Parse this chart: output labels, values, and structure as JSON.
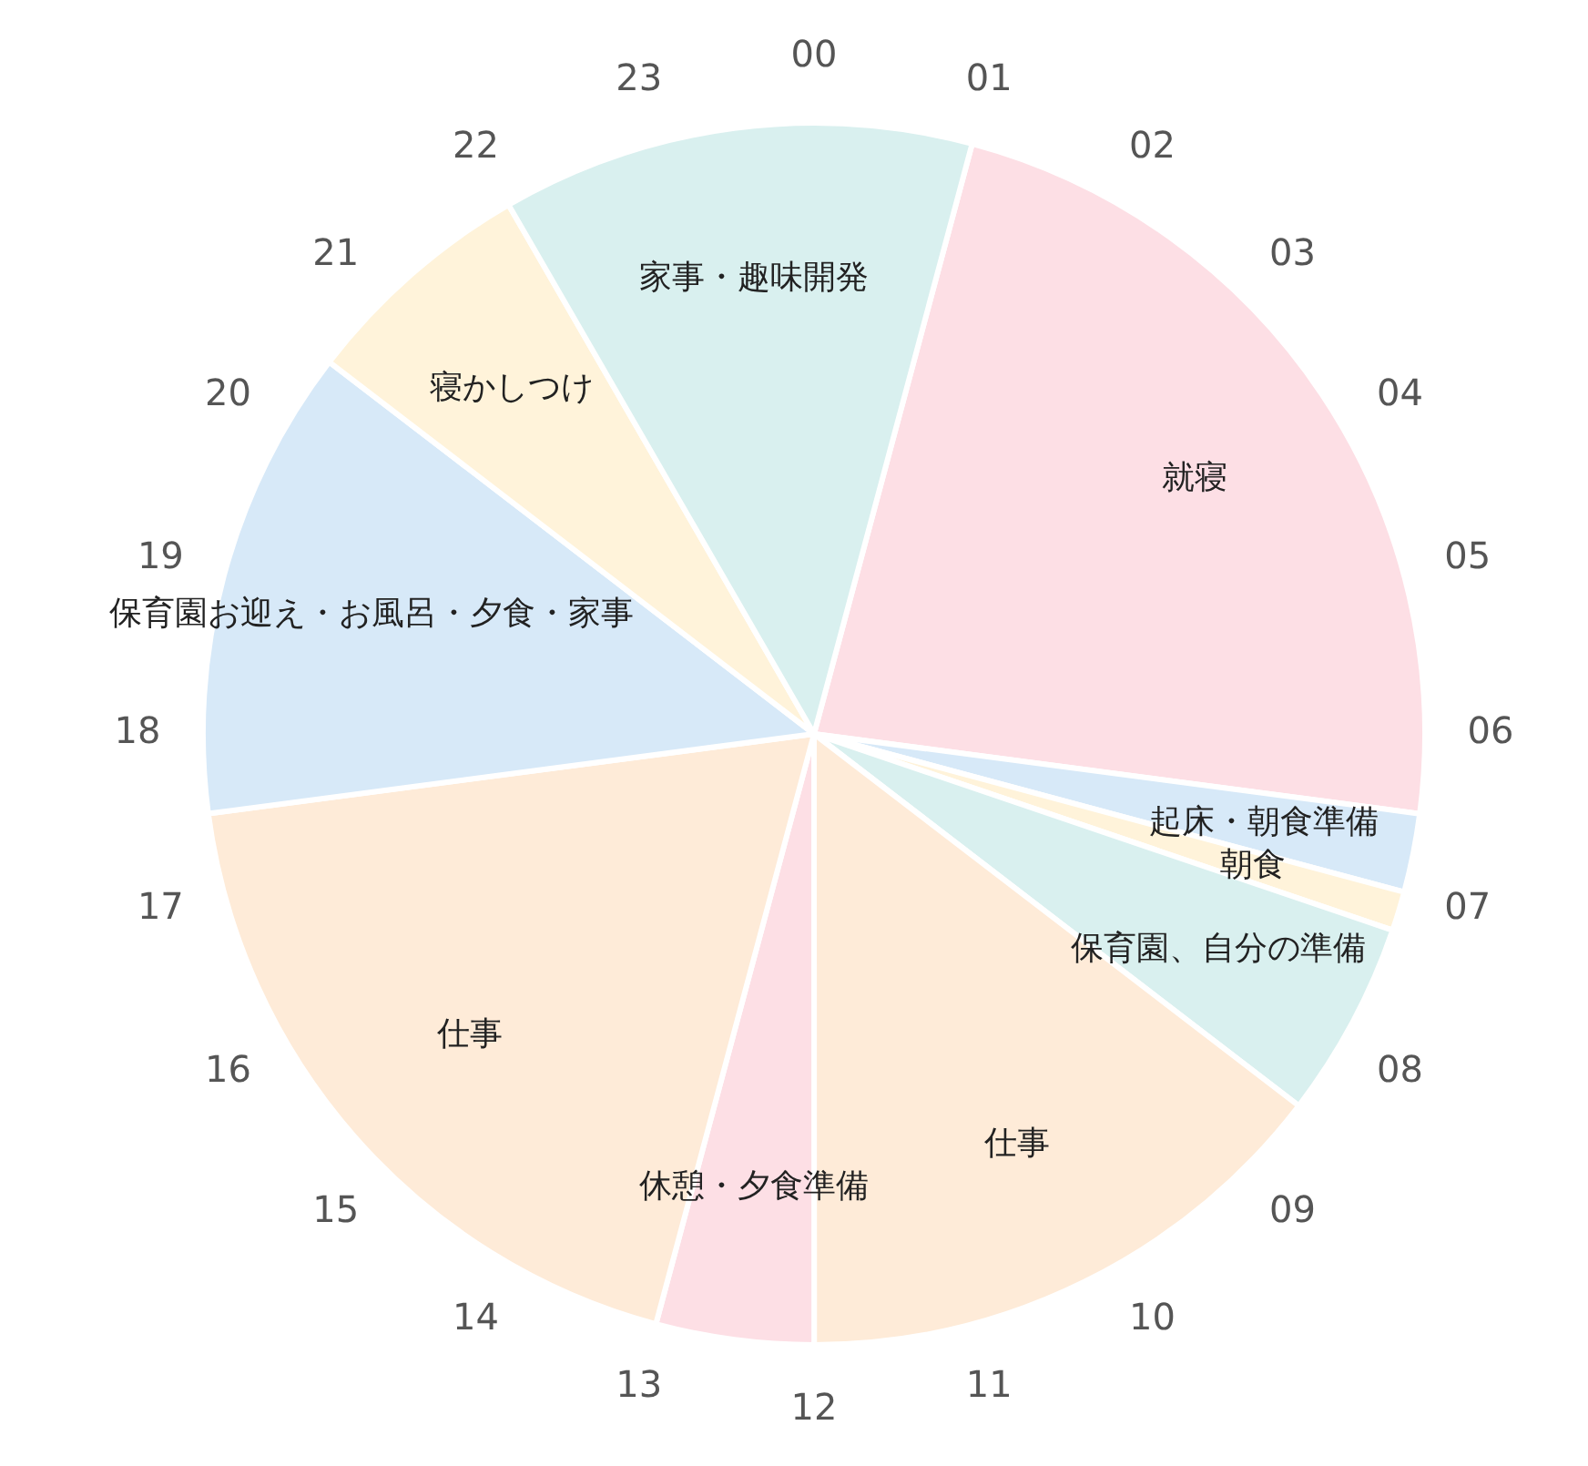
{
  "chart_data": {
    "type": "pie",
    "categories": [
      "就寝",
      "起床・朝食準備",
      "朝食",
      "保育園、自分の準備",
      "仕事",
      "休憩・夕食準備",
      "仕事",
      "保育園お迎え・お風呂・夕食・家事",
      "寝かしつけ",
      "家事・趣味開発"
    ],
    "values": [
      22.92,
      2.08,
      1.04,
      5.21,
      14.58,
      4.17,
      18.75,
      12.5,
      6.25,
      12.5
    ],
    "colors": [
      "#fddfe5",
      "#d7e9f8",
      "#fff3da",
      "#d9f0ef",
      "#feebd8",
      "#fddfe5",
      "#feebd8",
      "#d7e9f8",
      "#fff3da",
      "#d9f0ef"
    ],
    "annotations": [
      "00",
      "01",
      "02",
      "03",
      "04",
      "05",
      "06",
      "07",
      "08",
      "09",
      "10",
      "11",
      "12",
      "13",
      "14",
      "15",
      "16",
      "17",
      "18",
      "19",
      "20",
      "21",
      "22",
      "23"
    ],
    "legend": false
  }
}
